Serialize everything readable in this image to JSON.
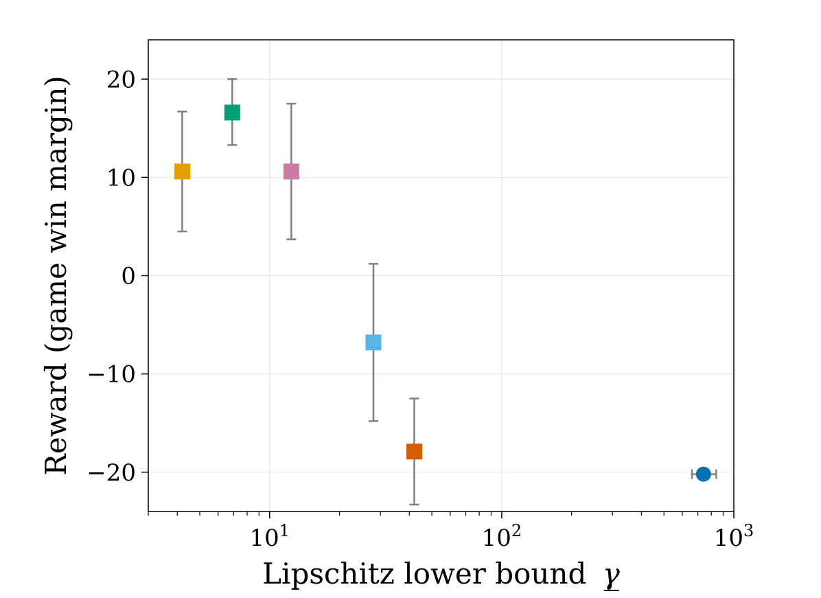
{
  "chart_data": {
    "type": "scatter",
    "title": "",
    "xlabel": "Lipschitz lower bound",
    "xlabel_symbol": "γ",
    "ylabel": "Reward (game win margin)",
    "xscale": "log",
    "xlim": [
      3,
      1000
    ],
    "ylim": [
      -24,
      24
    ],
    "grid": true,
    "x_ticks": [
      {
        "value": 10,
        "base": "10",
        "exp": "1"
      },
      {
        "value": 100,
        "base": "10",
        "exp": "2"
      },
      {
        "value": 1000,
        "base": "10",
        "exp": "3"
      }
    ],
    "y_ticks": [
      {
        "value": 20,
        "label": "20"
      },
      {
        "value": 10,
        "label": "10"
      },
      {
        "value": 0,
        "label": "0"
      },
      {
        "value": -10,
        "label": "−10"
      },
      {
        "value": -20,
        "label": "−20"
      }
    ],
    "points": [
      {
        "x": 4.2,
        "y": 10.6,
        "y_low": 4.5,
        "y_high": 16.7,
        "x_low": 4.0,
        "x_high": 4.4,
        "marker": "square",
        "color": "#E69F00"
      },
      {
        "x": 6.9,
        "y": 16.6,
        "y_low": 13.3,
        "y_high": 20.0,
        "x_low": 6.9,
        "x_high": 6.9,
        "marker": "square",
        "color": "#009E73"
      },
      {
        "x": 12.4,
        "y": 10.6,
        "y_low": 3.7,
        "y_high": 17.5,
        "x_low": 12.4,
        "x_high": 12.4,
        "marker": "square",
        "color": "#CC79A7"
      },
      {
        "x": 28.0,
        "y": -6.8,
        "y_low": -14.8,
        "y_high": 1.2,
        "x_low": 26.8,
        "x_high": 29.2,
        "marker": "square",
        "color": "#56B4E9"
      },
      {
        "x": 42.0,
        "y": -17.9,
        "y_low": -23.3,
        "y_high": -12.5,
        "x_low": 42.0,
        "x_high": 42.0,
        "marker": "square",
        "color": "#D55E00"
      },
      {
        "x": 740,
        "y": -20.2,
        "y_low": -20.2,
        "y_high": -20.2,
        "x_low": 660,
        "x_high": 840,
        "marker": "circle",
        "color": "#0072B2"
      }
    ]
  }
}
